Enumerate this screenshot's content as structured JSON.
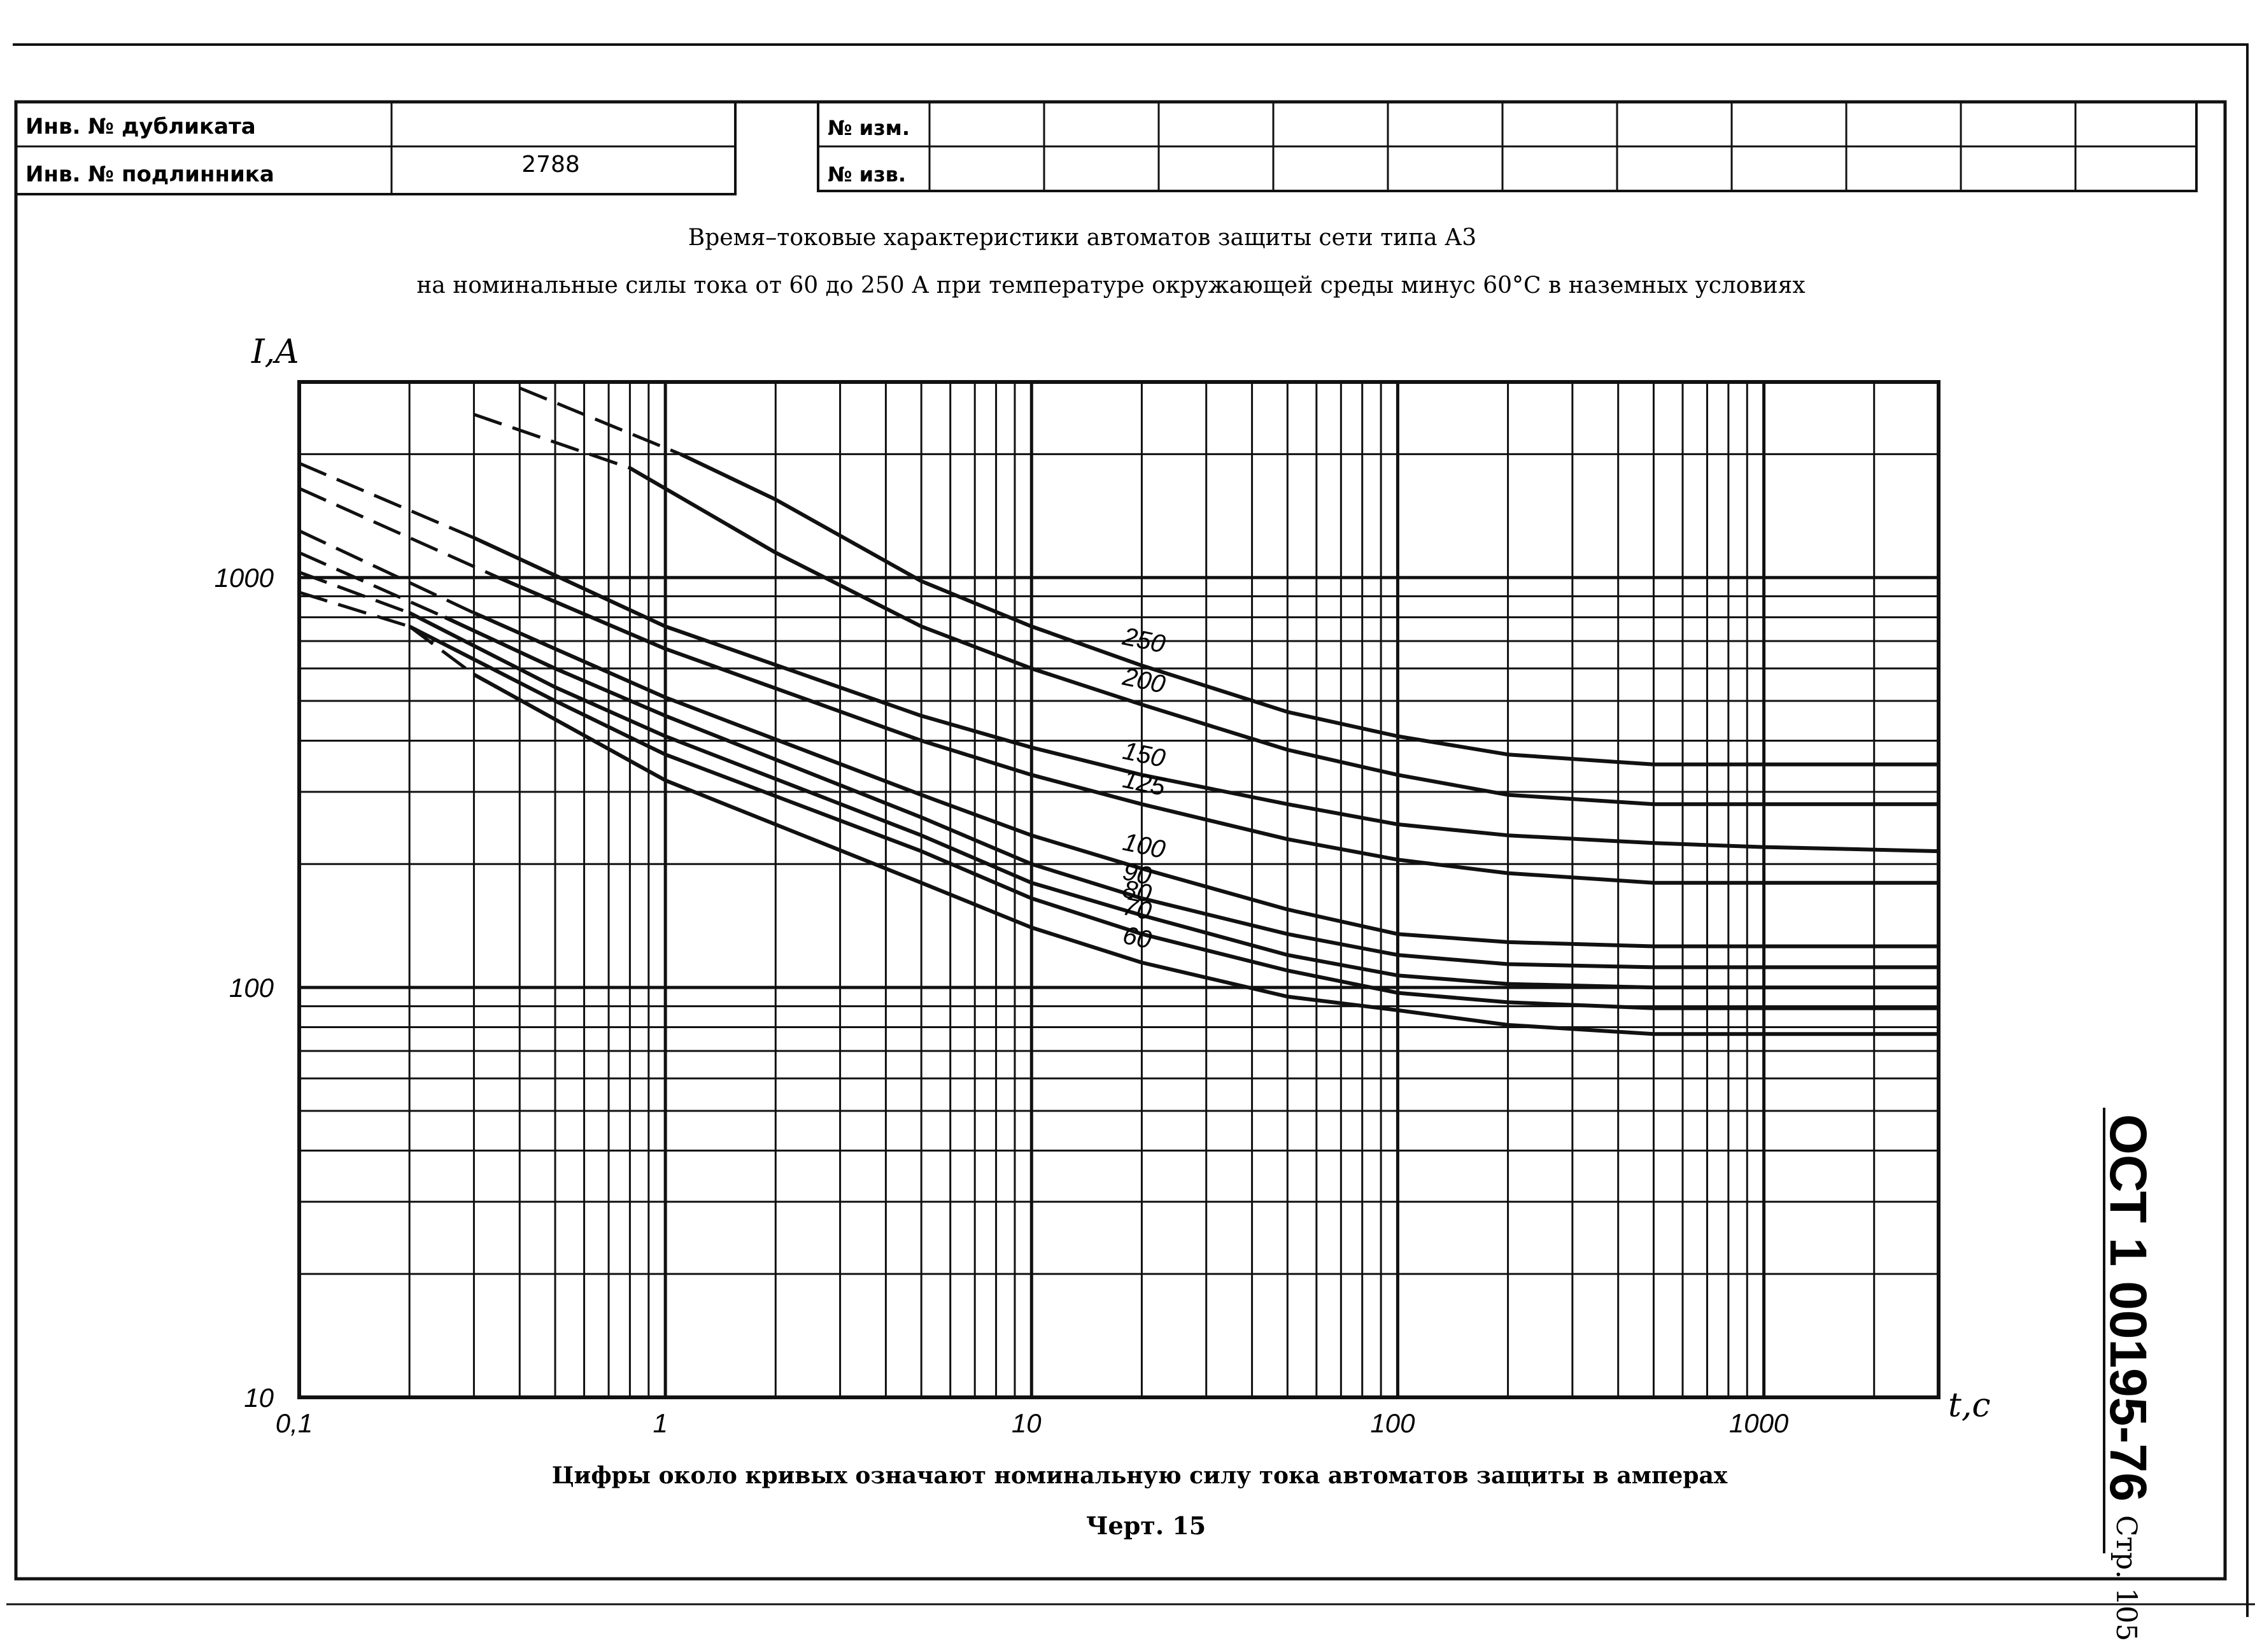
{
  "header": {
    "dup_label": "Инв. № дубликата",
    "dup_value": "",
    "orig_label": "Инв. № подлинника",
    "orig_value": "2788",
    "change_label": "№ изм.",
    "notice_label": "№ изв."
  },
  "caption": {
    "title_line1": "Время–токовые характеристики автоматов защиты сети типа А3",
    "title_line2": "на номинальные силы тока от 60 до 250 А при температуре окружающей среды минус 60°С в наземных условиях",
    "note": "Цифры около кривых означают номинальную силу тока автоматов защиты в амперах",
    "figure": "Черт. 15"
  },
  "stamp": {
    "standard": "ОСТ 1 00195-76",
    "page": "Стр. 105"
  },
  "chart_data": {
    "type": "line",
    "xscale": "log",
    "yscale": "log",
    "xlim": [
      0.1,
      3000
    ],
    "ylim": [
      10,
      3000
    ],
    "xlabel": "t,c",
    "ylabel": "I,A",
    "xticks": [
      0.1,
      1,
      10,
      100,
      1000
    ],
    "xtick_labels": [
      "0,1",
      "1",
      "10",
      "100",
      "1000"
    ],
    "yticks": [
      10,
      100,
      1000
    ],
    "ytick_labels": [
      "10",
      "100",
      "1000"
    ],
    "grid": true,
    "series": [
      {
        "name": "60",
        "dashed": {
          "x": [
            0.2,
            0.3
          ],
          "y": [
            760,
            580
          ]
        },
        "x": [
          0.3,
          1,
          5,
          10,
          20,
          50,
          100,
          200,
          500,
          1000,
          3000
        ],
        "y": [
          580,
          320,
          180,
          140,
          115,
          95,
          88,
          81,
          77,
          77,
          77
        ]
      },
      {
        "name": "70",
        "dashed": {
          "x": [
            0.1,
            0.2
          ],
          "y": [
            920,
            760
          ]
        },
        "x": [
          0.2,
          0.5,
          1,
          5,
          10,
          20,
          50,
          100,
          200,
          500,
          1000,
          3000
        ],
        "y": [
          760,
          500,
          370,
          215,
          165,
          135,
          110,
          97,
          92,
          89,
          89,
          89
        ]
      },
      {
        "name": "80",
        "dashed": {
          "x": [
            0.1,
            0.2
          ],
          "y": [
            1030,
            820
          ]
        },
        "x": [
          0.2,
          0.5,
          1,
          5,
          10,
          20,
          50,
          100,
          200,
          500,
          1000,
          3000
        ],
        "y": [
          820,
          540,
          410,
          235,
          180,
          150,
          120,
          107,
          102,
          100,
          100,
          100
        ]
      },
      {
        "name": "90",
        "dashed": {
          "x": [
            0.1,
            0.25
          ],
          "y": [
            1150,
            800
          ]
        },
        "x": [
          0.25,
          0.5,
          1,
          5,
          10,
          20,
          50,
          100,
          200,
          500,
          1000,
          3000
        ],
        "y": [
          800,
          600,
          460,
          260,
          200,
          165,
          135,
          120,
          114,
          112,
          112,
          112
        ]
      },
      {
        "name": "100",
        "dashed": {
          "x": [
            0.1,
            0.3
          ],
          "y": [
            1300,
            820
          ]
        },
        "x": [
          0.3,
          0.5,
          1,
          5,
          10,
          20,
          50,
          100,
          200,
          500,
          1000,
          3000
        ],
        "y": [
          820,
          670,
          510,
          295,
          235,
          195,
          155,
          135,
          129,
          126,
          126,
          126
        ]
      },
      {
        "name": "125",
        "dashed": {
          "x": [
            0.1,
            0.35
          ],
          "y": [
            1650,
            1000
          ]
        },
        "x": [
          0.35,
          1,
          5,
          10,
          20,
          50,
          100,
          200,
          500,
          1000,
          3000
        ],
        "y": [
          1000,
          670,
          400,
          330,
          280,
          230,
          205,
          190,
          180,
          180,
          180
        ]
      },
      {
        "name": "150",
        "dashed": {
          "x": [
            0.1,
            0.3
          ],
          "y": [
            1900,
            1250
          ]
        },
        "x": [
          0.3,
          1,
          5,
          10,
          20,
          50,
          100,
          200,
          500,
          1000,
          3000
        ],
        "y": [
          1250,
          760,
          460,
          385,
          330,
          280,
          250,
          235,
          225,
          220,
          215
        ]
      },
      {
        "name": "200",
        "dashed": {
          "x": [
            0.3,
            0.8
          ],
          "y": [
            2500,
            1850
          ]
        },
        "x": [
          0.8,
          2,
          5,
          10,
          20,
          50,
          100,
          200,
          500,
          1000,
          3000
        ],
        "y": [
          1850,
          1150,
          760,
          600,
          490,
          380,
          330,
          295,
          280,
          280,
          280
        ]
      },
      {
        "name": "250",
        "dashed": {
          "x": [
            0.4,
            1.1
          ],
          "y": [
            2900,
            2000
          ]
        },
        "x": [
          1.1,
          2,
          5,
          10,
          20,
          50,
          100,
          200,
          500,
          1000,
          3000
        ],
        "y": [
          2000,
          1550,
          980,
          760,
          610,
          470,
          410,
          370,
          350,
          350,
          350
        ]
      }
    ],
    "curve_labels": [
      "250",
      "200",
      "150",
      "125",
      "100",
      "90",
      "80",
      "70",
      "60"
    ]
  }
}
